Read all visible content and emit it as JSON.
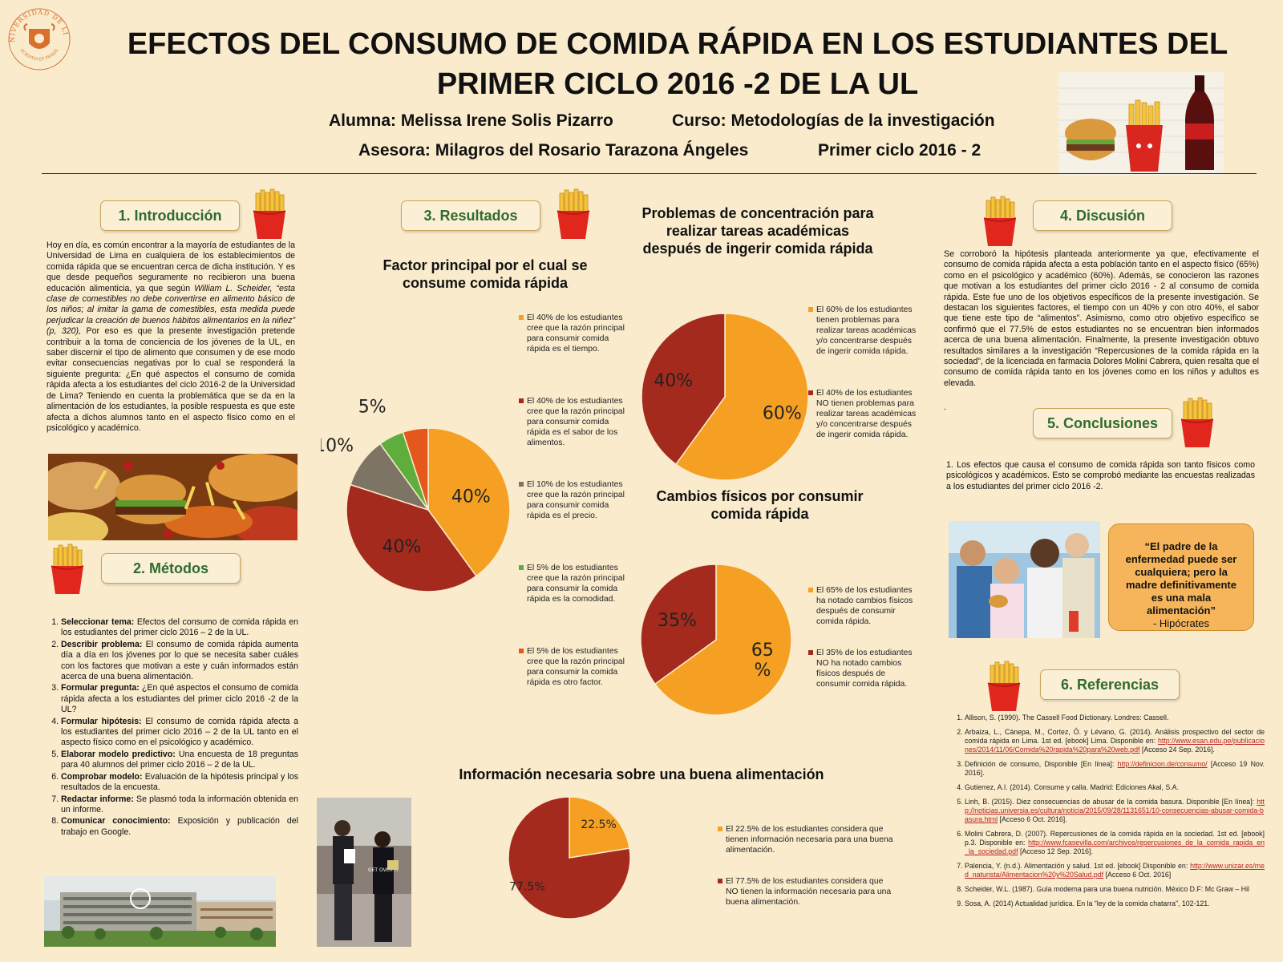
{
  "header": {
    "logo_text_top": "UNIVERSIDAD DE LIMA",
    "logo_text_bottom": "SCIENTIA ET PRAXIS",
    "title_line1": "EFECTOS DEL CONSUMO DE COMIDA RÁPIDA EN LOS ESTUDIANTES DEL",
    "title_line2": "PRIMER CICLO 2016 -2 DE LA UL",
    "alumna": "Alumna:  Melissa Irene Solis Pizarro",
    "curso": "Curso: Metodologías de la investigación",
    "asesora": "Asesora: Milagros del Rosario Tarazona Ángeles",
    "ciclo": "Primer ciclo 2016 - 2"
  },
  "sections": {
    "intro": "1. Introducción",
    "methods": "2. Métodos",
    "results": "3. Resultados",
    "discussion": "4. Discusión",
    "conclusions": "5. Conclusiones",
    "references": "6. Referencias"
  },
  "intro": {
    "p1": "Hoy en día, es común encontrar a la mayoría de estudiantes de la Universidad de Lima en cualquiera de los establecimientos de comida rápida que se encuentran cerca de dicha institución. Y es que desde pequeños seguramente no recibieron una buena educación alimenticia, ya que según",
    "quote": "William L. Scheider, “esta clase de comestibles no debe convertirse en alimento básico de los niños; al imitar la gama de comestibles, esta medida puede perjudicar la creación de buenos hábitos alimentarios en la niñez” (p, 320),",
    "p2": " Por eso es que la presente investigación pretende contribuir a la toma de conciencia de los jóvenes de la UL, en saber discernir el tipo de alimento que consumen y de ese modo evitar consecuencias negativas por lo cual se responderá la siguiente pregunta: ¿En qué aspectos el consumo de comida rápida afecta a los estudiantes del ciclo 2016-2 de la Universidad de Lima? Teniendo en cuenta la problemática que se da en la alimentación de los estudiantes, la posible respuesta es que este afecta a dichos alumnos tanto en el aspecto físico como en el psicológico y académico."
  },
  "methods": [
    {
      "term": "Seleccionar tema:",
      "text": " Efectos del consumo de comida rápida en los estudiantes del primer ciclo 2016 – 2 de la UL."
    },
    {
      "term": "Describir problema:",
      "text": " El consumo de comida rápida aumenta día a día en los jóvenes por lo que se necesita saber cuáles con los factores que motivan a este y cuán informados están acerca de una buena alimentación."
    },
    {
      "term": "Formular pregunta:",
      "text": " ¿En qué aspectos el consumo de comida rápida afecta a los estudiantes del primer ciclo 2016 -2 de la UL?"
    },
    {
      "term": " Formular hipótesis:",
      "text": " El consumo de comida rápida afecta a los estudiantes del primer ciclo 2016 – 2 de la UL tanto en el aspecto físico como en el psicológico y académico."
    },
    {
      "term": "Elaborar modelo predictivo:",
      "text": " Una encuesta de 18 preguntas para 40 alumnos del primer ciclo 2016 – 2 de la UL."
    },
    {
      "term": "Comprobar modelo:",
      "text": " Evaluación de la hipótesis principal y los resultados de la encuesta."
    },
    {
      "term": "Redactar informe:",
      "text": " Se plasmó toda la información obtenida en un informe."
    },
    {
      "term": "Comunicar conocimiento:",
      "text": " Exposición y publicación del trabajo en Google."
    }
  ],
  "photo_shirt_text": "GET OVER IT",
  "chart_data": [
    {
      "type": "pie",
      "title": "Factor principal por el cual se consume comida rápida",
      "values": [
        40,
        40,
        10,
        5,
        5
      ],
      "labels": [
        "40%",
        "40%",
        "10%",
        "5%",
        "5%"
      ],
      "colors": [
        "#f6a023",
        "#a52a1e",
        "#7d7465",
        "#5fae3d",
        "#e5581d"
      ],
      "legend": [
        "El 40% de los estudiantes cree que la razón principal para consumir comida rápida es el tiempo.",
        "El 40% de los estudiantes cree que la razón principal para consumir comida rápida es el sabor de los alimentos.",
        "El 10% de los estudiantes cree que la razón principal para consumir comida rápida es el precio.",
        "El 5% de los estudiantes cree que la razón principal para consumir la comida rápida es la comodidad.",
        "El 5% de los estudiantes cree que la razón principal para consumir la comida rápida es otro factor."
      ]
    },
    {
      "type": "pie",
      "title": "Problemas de concentración para realizar tareas académicas después de ingerir comida rápida",
      "values": [
        60,
        40
      ],
      "labels": [
        "60%",
        "40%"
      ],
      "colors": [
        "#f6a023",
        "#a52a1e"
      ],
      "legend": [
        "El 60% de los estudiantes tienen problemas para realizar tareas académicas y/o concentrarse después de ingerir comida rápida.",
        "El 40% de los estudiantes NO tienen problemas para realizar tareas académicas y/o concentrarse después de ingerir comida rápida."
      ]
    },
    {
      "type": "pie",
      "title": "Cambios físicos por consumir comida  rápida",
      "values": [
        65,
        35
      ],
      "labels": [
        "65 %",
        "35%"
      ],
      "colors": [
        "#f6a023",
        "#a52a1e"
      ],
      "legend": [
        "El 65% de los estudiantes ha notado cambios físicos después de consumir comida rápida.",
        "El 35% de los estudiantes NO ha notado cambios físicos después de consumir comida rápida."
      ]
    },
    {
      "type": "pie",
      "title": "Información necesaria sobre una buena alimentación",
      "values": [
        22.5,
        77.5
      ],
      "labels": [
        "22.5%",
        "77.5%"
      ],
      "colors": [
        "#f6a023",
        "#a52a1e"
      ],
      "legend": [
        "El 22.5% de los estudiantes considera que tienen información necesaria para una buena alimentación.",
        "El 77.5% de los estudiantes considera que NO tienen la información necesaria para una buena alimentación."
      ]
    }
  ],
  "discussion": "Se corroboró la hipótesis planteada anteriormente ya que, efectivamente el consumo de comida rápida afecta a esta población tanto en el aspecto físico (65%) como en el psicológico y académico (60%). Además, se conocieron las razones que motivan a los estudiantes del primer ciclo 2016 - 2 al consumo de comida rápida. Este fue uno de los objetivos específicos de la presente investigación. Se destacan los siguientes factores, el tiempo con un 40%  y con otro 40%,  el sabor que tiene este tipo de “alimentos”. Asimismo, como otro objetivo específico se confirmó que el 77.5% de estos estudiantes no se encuentran bien informados acerca de una buena alimentación. Finalmente, la presente investigación obtuvo resultados similares a la investigación “Repercusiones de la comida rápida en la sociedad”, de la licenciada en farmacia  Dolores Molini Cabrera, quien resalta que el consumo de comida rápida tanto en los jóvenes como en los niños y adultos es elevada.",
  "discussion_dot": ".",
  "conclusion": "1. Los efectos que causa el consumo de comida rápida son tanto físicos como psicológicos y académicos. Esto se comprobó mediante las encuestas realizadas a los estudiantes del primer ciclo 2016 -2.",
  "quote": {
    "text": "“El padre de la enfermedad puede ser cualquiera; pero la madre definitivamente es una mala alimentación”",
    "author": "- Hipócrates"
  },
  "references": [
    {
      "text": "Allison, S. (1990). The Cassell Food Dictionary. Londres: Cassell.",
      "link": "",
      "after": ""
    },
    {
      "text": "Arbaiza, L., Cánepa, M., Cortez, Ó. y Lévano, G. (2014). Análisis prospectivo del sector de comida rápida en Lima. 1st ed. [ebook] Lima. Disponible en: ",
      "link": "http://www.esan.edu.pe/publicaciones/2014/11/06/Comida%20rapida%20para%20web.pdf",
      "after": " [Acceso 24 Sep. 2016]."
    },
    {
      "text": "Definición de consumo, Disponible [En línea]: ",
      "link": "http://definicion.de/consumo/",
      "after": " [Acceso 19 Nov. 2016]."
    },
    {
      "text": "Gutierrez, A.I. (2014). Consume y calla. Madrid: Ediciones Akal, S.A.",
      "link": "",
      "after": ""
    },
    {
      "text": "Linh, B. (2015). Diez consecuencias de abusar de la comida basura. Disponible [En línea]: ",
      "link": "http://noticias.universia.es/cultura/noticia/2015/09/28/1131651/10-consecuencias-abusar-comida-basura.html",
      "after": " [Acceso 6 Oct. 2016]."
    },
    {
      "text": "Molini Cabrera, D. (2007). Repercusiones de la comida rápida en la sociedad. 1st ed. [ebook] p.3. Disponible en: ",
      "link": "http://www.fcasevilla.com/archivos/repercusiones_de_la_comida_rapida_en_la_sociedad.pdf",
      "after": " [Acceso 12 Sep. 2016]."
    },
    {
      "text": "Palencia, Y. (n.d.). Alimentación y salud. 1st ed. [ebook] Disponible en: ",
      "link": "http://www.unizar.es/med_naturista/Alimentacion%20y%20Salud.pdf",
      "after": " [Acceso 6 Oct. 2016]"
    },
    {
      "text": "Scheider, W.L. (1987). Guía moderna para una buena nutrición. México D.F: Mc Graw – Hil",
      "link": "",
      "after": ""
    },
    {
      "text": "Sosa, A. (2014) Actualidad jurídica. En  la “ley de la comida chatarra”, 102-121.",
      "link": "",
      "after": ""
    }
  ]
}
